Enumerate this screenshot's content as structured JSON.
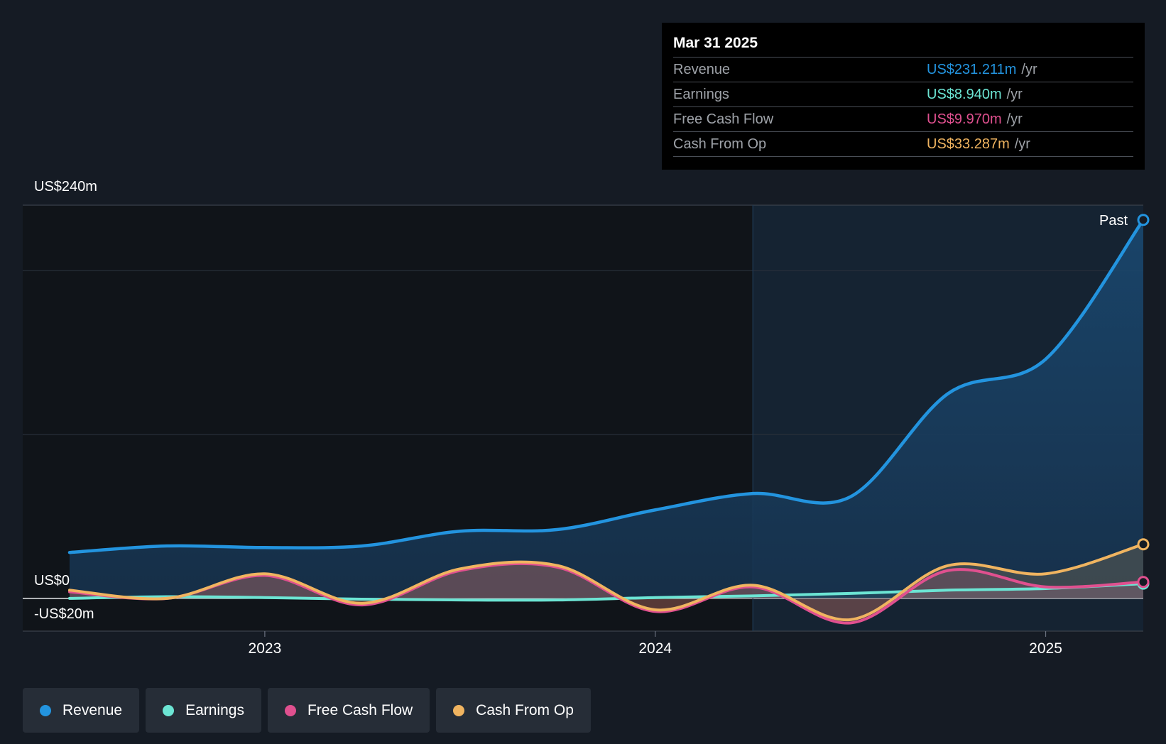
{
  "tooltip": {
    "date": "Mar 31 2025",
    "rows": [
      {
        "label": "Revenue",
        "value": "US$231.211m",
        "unit": "/yr",
        "color": "#2394df"
      },
      {
        "label": "Earnings",
        "value": "US$8.940m",
        "unit": "/yr",
        "color": "#6ce5d4"
      },
      {
        "label": "Free Cash Flow",
        "value": "US$9.970m",
        "unit": "/yr",
        "color": "#e0508f"
      },
      {
        "label": "Cash From Op",
        "value": "US$33.287m",
        "unit": "/yr",
        "color": "#f0b460"
      }
    ]
  },
  "past_label": "Past",
  "legend": [
    {
      "label": "Revenue",
      "color": "#2394df"
    },
    {
      "label": "Earnings",
      "color": "#6ce5d4"
    },
    {
      "label": "Free Cash Flow",
      "color": "#e0508f"
    },
    {
      "label": "Cash From Op",
      "color": "#f0b460"
    }
  ],
  "chart_data": {
    "type": "line",
    "y_axis_labels": {
      "top": "US$240m",
      "zero": "US$0",
      "bottom": "-US$20m"
    },
    "ylim": [
      -20,
      240
    ],
    "xlim": [
      2022.38,
      2025.25
    ],
    "x_ticks": [
      {
        "value": 2023.0,
        "label": "2023"
      },
      {
        "value": 2024.0,
        "label": "2024"
      },
      {
        "value": 2025.0,
        "label": "2025"
      }
    ],
    "grid": true,
    "legend_position": "bottom",
    "highlight_from_x": 2024.25,
    "series": [
      {
        "name": "Revenue",
        "color": "#2394df",
        "x": [
          2022.5,
          2022.75,
          2023.0,
          2023.25,
          2023.5,
          2023.75,
          2024.0,
          2024.25,
          2024.5,
          2024.75,
          2025.0,
          2025.25
        ],
        "y": [
          28,
          32,
          31,
          32,
          41,
          42,
          54,
          64,
          62,
          125,
          146,
          231
        ]
      },
      {
        "name": "Earnings",
        "color": "#6ce5d4",
        "x": [
          2022.5,
          2022.75,
          2023.0,
          2023.25,
          2023.5,
          2023.75,
          2024.0,
          2024.25,
          2024.5,
          2024.75,
          2025.0,
          2025.25
        ],
        "y": [
          0,
          1,
          0.5,
          -0.5,
          -1,
          -1,
          0.5,
          1.5,
          3,
          5,
          6,
          9
        ]
      },
      {
        "name": "Free Cash Flow",
        "color": "#e0508f",
        "x": [
          2022.5,
          2022.75,
          2023.0,
          2023.25,
          2023.5,
          2023.75,
          2024.0,
          2024.25,
          2024.5,
          2024.75,
          2025.0,
          2025.25
        ],
        "y": [
          4,
          0,
          14,
          -4,
          17,
          19,
          -8,
          7,
          -15,
          17,
          7,
          10
        ]
      },
      {
        "name": "Cash From Op",
        "color": "#f0b460",
        "x": [
          2022.5,
          2022.75,
          2023.0,
          2023.25,
          2023.5,
          2023.75,
          2024.0,
          2024.25,
          2024.5,
          2024.75,
          2025.0,
          2025.25
        ],
        "y": [
          5,
          0,
          15,
          -3,
          18,
          20,
          -7,
          8,
          -13,
          20,
          15,
          33
        ]
      }
    ]
  }
}
